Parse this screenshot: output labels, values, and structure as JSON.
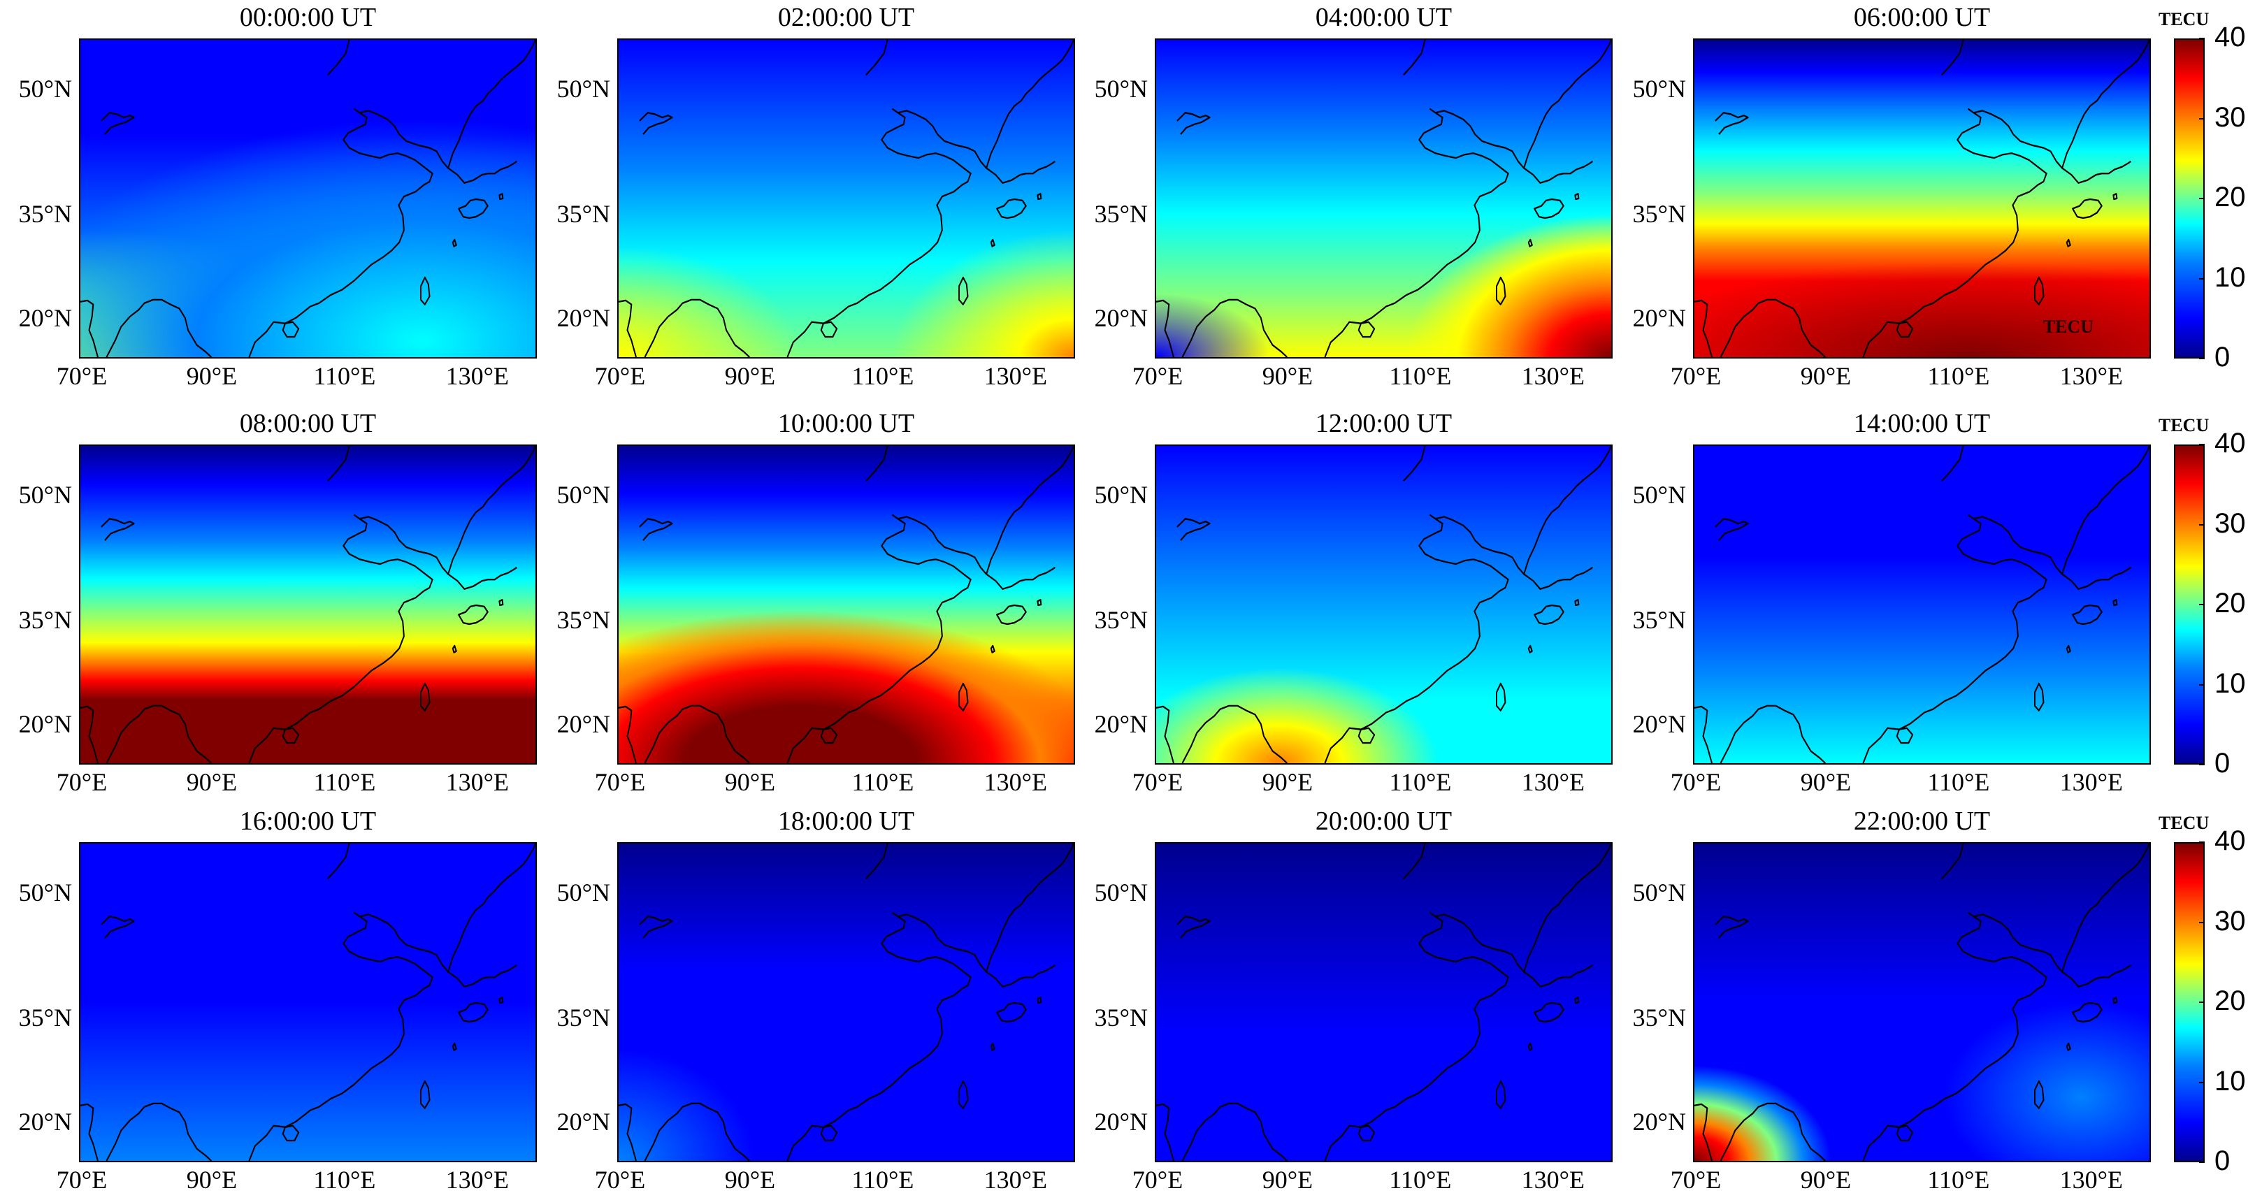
{
  "figure_title": "",
  "latitude_labels": [
    "50°N",
    "35°N",
    "20°N"
  ],
  "longitude_labels": [
    "70°E",
    "90°E",
    "110°E",
    "130°E"
  ],
  "colorbar": {
    "unit": "TECU",
    "ticks": [
      "40",
      "30",
      "20",
      "10",
      "0"
    ],
    "range": [
      0,
      40
    ],
    "colormap": "jet"
  },
  "panels": [
    {
      "title": "00:00:00 UT",
      "overlay_label": ""
    },
    {
      "title": "02:00:00 UT",
      "overlay_label": ""
    },
    {
      "title": "04:00:00 UT",
      "overlay_label": ""
    },
    {
      "title": "06:00:00 UT",
      "overlay_label": "TECU"
    },
    {
      "title": "08:00:00 UT",
      "overlay_label": ""
    },
    {
      "title": "10:00:00 UT",
      "overlay_label": ""
    },
    {
      "title": "12:00:00 UT",
      "overlay_label": ""
    },
    {
      "title": "14:00:00 UT",
      "overlay_label": ""
    },
    {
      "title": "16:00:00 UT",
      "overlay_label": ""
    },
    {
      "title": "18:00:00 UT",
      "overlay_label": ""
    },
    {
      "title": "20:00:00 UT",
      "overlay_label": ""
    },
    {
      "title": "22:00:00 UT",
      "overlay_label": ""
    }
  ],
  "colors": {
    "tec_0": "#00008f",
    "tec_5": "#0000ff",
    "tec_12": "#0080ff",
    "tec_17": "#00ffff",
    "tec_21": "#80ff80",
    "tec_25": "#ffff00",
    "tec_30": "#ff8000",
    "tec_35": "#ff0000",
    "tec_40": "#800000",
    "coastline": "#000000"
  }
}
